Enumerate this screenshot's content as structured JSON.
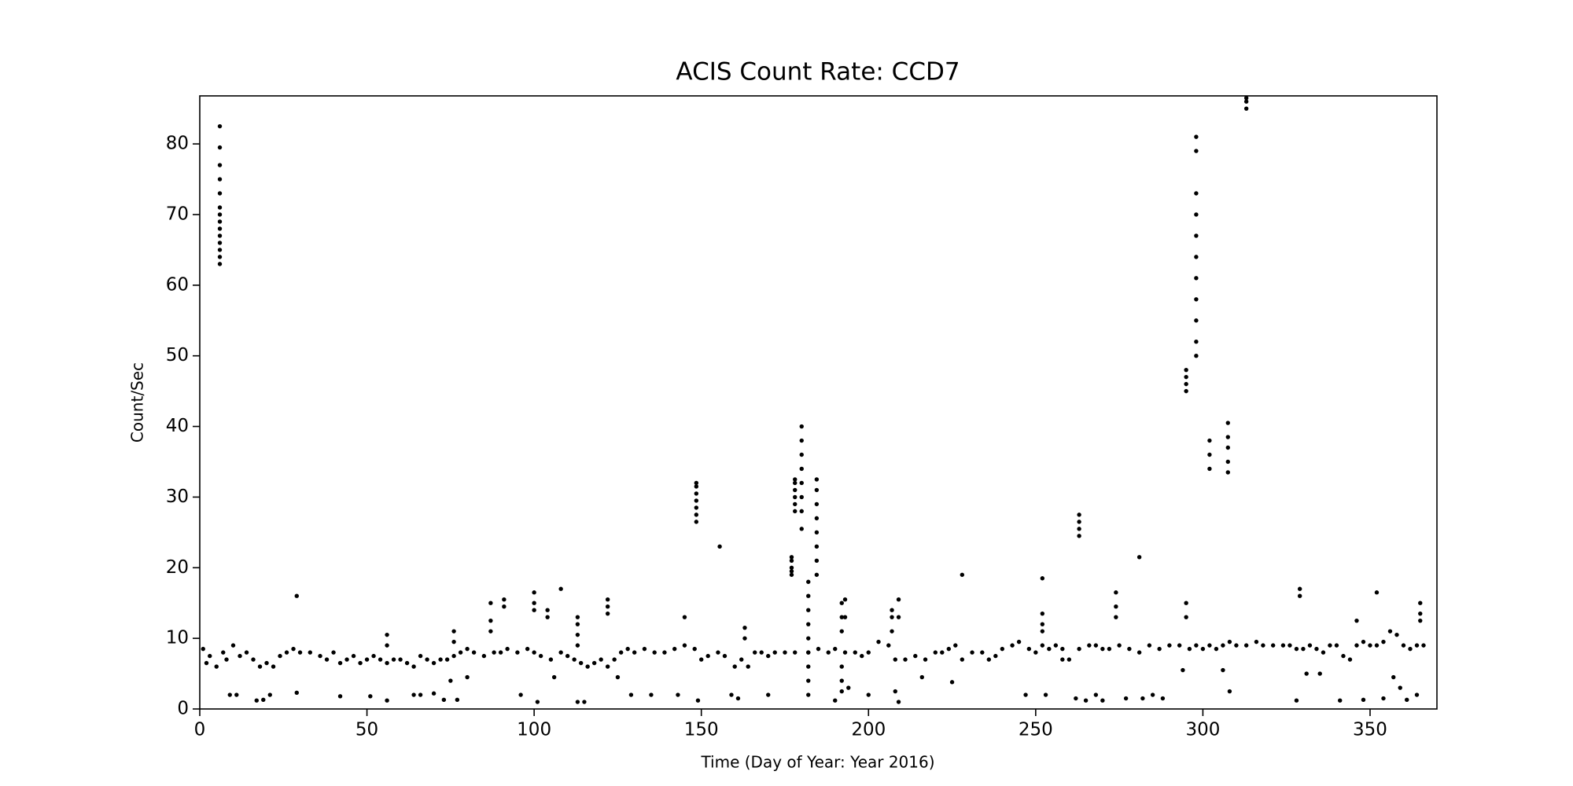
{
  "chart_data": {
    "type": "scatter",
    "title": "ACIS Count Rate: CCD7",
    "x_label": "Time (Day of Year: Year 2016)",
    "y_label": "Count/Sec",
    "color": "#000000",
    "grid": false,
    "xlim": [
      0,
      370
    ],
    "ylim": [
      0,
      86.8
    ],
    "xticks": [
      0,
      50,
      100,
      150,
      200,
      250,
      300,
      350
    ],
    "yticks": [
      0,
      10,
      20,
      30,
      40,
      50,
      60,
      70,
      80
    ],
    "x": [
      1,
      2,
      3,
      5,
      7,
      8,
      10,
      12,
      14,
      16,
      18,
      20,
      22,
      24,
      26,
      28,
      30,
      33,
      36,
      38,
      40,
      42,
      44,
      46,
      48,
      50,
      52,
      54,
      56,
      58,
      60,
      62,
      64,
      66,
      68,
      70,
      72,
      74,
      76,
      78,
      80,
      82,
      85,
      88,
      90,
      92,
      95,
      98,
      100,
      102,
      105,
      108,
      110,
      112,
      114,
      116,
      118,
      120,
      122,
      124,
      126,
      128,
      130,
      133,
      136,
      139,
      142,
      145,
      148,
      150,
      152,
      155,
      157,
      160,
      162,
      164,
      166,
      168,
      170,
      172,
      175,
      178,
      182,
      185,
      188,
      190,
      193,
      196,
      198,
      200,
      203,
      206,
      208,
      211,
      214,
      217,
      220,
      222,
      224,
      226,
      228,
      231,
      234,
      236,
      238,
      240,
      243,
      245,
      248,
      250,
      252,
      254,
      256,
      258,
      260,
      263,
      266,
      268,
      270,
      272,
      275,
      278,
      281,
      284,
      287,
      290,
      293,
      296,
      298,
      300,
      302,
      304,
      306,
      308,
      310,
      313,
      316,
      318,
      321,
      324,
      326,
      328,
      330,
      332,
      334,
      336,
      338,
      340,
      342,
      344,
      346,
      348,
      350,
      352,
      354,
      356,
      358,
      360,
      362,
      364,
      366,
      9,
      11,
      17,
      19,
      21,
      29,
      42,
      51,
      56,
      64,
      66,
      70,
      73,
      75,
      77,
      80,
      96,
      101,
      106,
      113,
      115,
      125,
      129,
      135,
      143,
      149,
      159,
      161,
      170,
      190,
      194,
      200,
      208,
      209,
      216,
      225,
      247,
      253,
      258,
      262,
      265,
      268,
      270,
      277,
      282,
      285,
      288,
      294,
      306,
      308,
      328,
      331,
      335,
      341,
      348,
      354,
      357,
      359,
      361,
      364,
      6,
      6,
      6,
      6,
      6,
      6,
      6,
      6,
      6,
      6,
      6,
      6,
      6,
      6,
      148.5,
      148.5,
      148.5,
      148.5,
      148.5,
      148.5,
      148.5,
      155.5,
      177,
      177,
      177,
      177,
      177,
      178,
      178,
      178,
      178,
      178,
      178,
      180,
      180,
      180,
      180,
      180,
      180,
      180,
      180,
      182,
      182,
      182,
      182,
      182,
      182,
      182,
      182,
      182,
      184.5,
      184.5,
      184.5,
      184.5,
      184.5,
      184.5,
      184.5,
      184.5,
      192,
      192,
      192,
      192,
      192,
      192,
      193,
      193,
      207,
      207,
      207,
      209,
      209,
      263,
      263,
      263,
      263,
      274,
      274,
      274,
      281,
      295,
      295,
      295,
      295,
      295,
      295,
      298,
      298,
      298,
      298,
      298,
      298,
      298,
      298,
      298,
      298,
      298,
      302,
      302,
      302,
      307.5,
      307.5,
      307.5,
      307.5,
      307.5,
      313,
      313,
      313,
      329,
      329,
      252,
      252,
      252,
      252,
      228,
      100,
      100,
      100,
      104,
      104,
      108,
      113,
      113,
      113,
      113,
      122,
      122,
      122,
      87,
      87,
      87,
      91,
      91,
      29,
      145,
      352,
      365,
      365,
      365,
      346,
      76,
      76,
      56,
      56,
      163,
      163
    ],
    "values": [
      8.5,
      6.5,
      7.5,
      6,
      8,
      7,
      9,
      7.5,
      8,
      7,
      6,
      6.5,
      6,
      7.5,
      8,
      8.5,
      8,
      8,
      7.5,
      7,
      8,
      6.5,
      7,
      7.5,
      6.5,
      7,
      7.5,
      7,
      6.5,
      7,
      7,
      6.5,
      6,
      7.5,
      7,
      6.5,
      7,
      7,
      7.5,
      8,
      8.5,
      8,
      7.5,
      8,
      8,
      8.5,
      8,
      8.5,
      8,
      7.5,
      7,
      8,
      7.5,
      7,
      6.5,
      6,
      6.5,
      7,
      6,
      7,
      8,
      8.5,
      8,
      8.5,
      8,
      8,
      8.5,
      9,
      8.5,
      7,
      7.5,
      8,
      7.5,
      6,
      7,
      6,
      8,
      8,
      7.5,
      8,
      8,
      8,
      8,
      8.5,
      8,
      8.5,
      8,
      8,
      7.5,
      8,
      9.5,
      9,
      7,
      7,
      7.5,
      7,
      8,
      8,
      8.5,
      9,
      7,
      8,
      8,
      7,
      7.5,
      8.5,
      9,
      9.5,
      8.5,
      8,
      9,
      8.5,
      9,
      8.5,
      7,
      8.5,
      9,
      9,
      8.5,
      8.5,
      9,
      8.5,
      8,
      9,
      8.5,
      9,
      9,
      8.5,
      9,
      8.5,
      9,
      8.5,
      9,
      9.5,
      9,
      9,
      9.5,
      9,
      9,
      9,
      9,
      8.5,
      8.5,
      9,
      8.5,
      8,
      9,
      9,
      7.5,
      7,
      9,
      9.5,
      9,
      9,
      9.5,
      11,
      10.5,
      9,
      8.5,
      9,
      9,
      2,
      2,
      1.2,
      1.3,
      2,
      2.3,
      1.8,
      1.8,
      1.2,
      2,
      2,
      2.2,
      1.3,
      4,
      1.3,
      4.5,
      2,
      1,
      4.5,
      1,
      1,
      4.5,
      2,
      2,
      2,
      1.2,
      2,
      1.5,
      2,
      1.2,
      3,
      2,
      2.5,
      1,
      4.5,
      3.8,
      2,
      2,
      7,
      1.5,
      1.2,
      2,
      1.2,
      1.5,
      1.5,
      2,
      1.5,
      5.5,
      5.5,
      2.5,
      1.2,
      5,
      5,
      1.2,
      1.3,
      1.5,
      4.5,
      3,
      1.3,
      2,
      63,
      64,
      65,
      66,
      67,
      68,
      69,
      70,
      71,
      73,
      75,
      77,
      79.5,
      82.5,
      26.5,
      27.5,
      28.5,
      29.5,
      30.5,
      31.5,
      32,
      23,
      19,
      19.5,
      20,
      21,
      21.5,
      28,
      29,
      30,
      31,
      32,
      32.5,
      25.5,
      28,
      30,
      32,
      34,
      36,
      38,
      40,
      2,
      4,
      6,
      8,
      10,
      12,
      14,
      16,
      18,
      19,
      21,
      23,
      25,
      27,
      29,
      31,
      32.5,
      2.5,
      4,
      6,
      11,
      13,
      15,
      13,
      15.5,
      11,
      13,
      14,
      13,
      15.5,
      24.5,
      25.5,
      26.5,
      27.5,
      13,
      14.5,
      16.5,
      21.5,
      45,
      46,
      47,
      48,
      13,
      15,
      50,
      52,
      55,
      58,
      61,
      64,
      67,
      70,
      73,
      79,
      81,
      34,
      36,
      38,
      33.5,
      35,
      37,
      38.5,
      40.5,
      85,
      86,
      86.5,
      16,
      17,
      11,
      12,
      13.5,
      18.5,
      19,
      14,
      15,
      16.5,
      13,
      14,
      17,
      9,
      10.5,
      12,
      13,
      13.5,
      14.5,
      15.5,
      11,
      12.5,
      15,
      14.5,
      15.5,
      16,
      13,
      16.5,
      12.5,
      13.5,
      15,
      12.5,
      9.5,
      11,
      9,
      10.5,
      10,
      11.5
    ]
  }
}
